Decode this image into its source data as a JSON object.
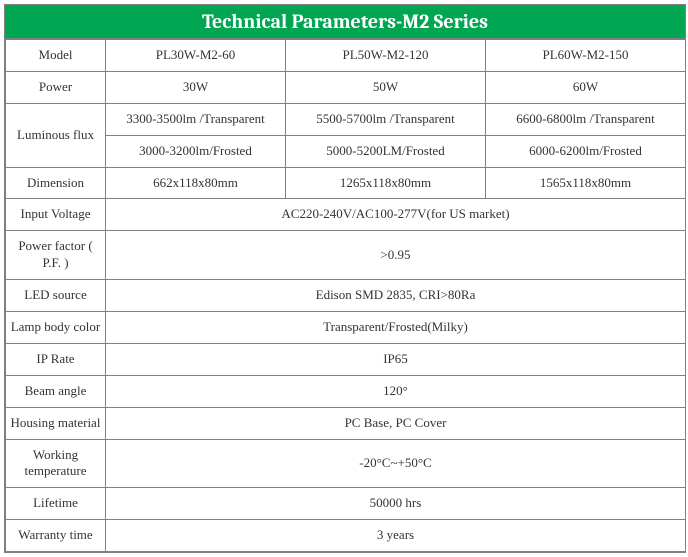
{
  "title": "Technical Parameters-M2 Series",
  "colors": {
    "header_bg": "#00a651",
    "header_text": "#ffffff",
    "border": "#808080",
    "cell_text": "#333333",
    "bg": "#ffffff"
  },
  "labels": {
    "model": "Model",
    "power": "Power",
    "luminous_flux": "Luminous flux",
    "dimension": "Dimension",
    "input_voltage": "Input Voltage",
    "power_factor": "Power factor ( P.F. )",
    "led_source": "LED source",
    "lamp_body_color": "Lamp body color",
    "ip_rate": "IP Rate",
    "beam_angle": "Beam angle",
    "housing_material": "Housing material",
    "working_temperature": "Working temperature",
    "lifetime": "Lifetime",
    "warranty_time": "Warranty time"
  },
  "model": {
    "v1": "PL30W-M2-60",
    "v2": "PL50W-M2-120",
    "v3": "PL60W-M2-150"
  },
  "power": {
    "v1": "30W",
    "v2": "50W",
    "v3": "60W"
  },
  "luminous_flux_transparent": {
    "v1": "3300-3500lm /Transparent",
    "v2": "5500-5700lm /Transparent",
    "v3": "6600-6800lm /Transparent"
  },
  "luminous_flux_frosted": {
    "v1": "3000-3200lm/Frosted",
    "v2": "5000-5200LM/Frosted",
    "v3": "6000-6200lm/Frosted"
  },
  "dimension": {
    "v1": "662x118x80mm",
    "v2": "1265x118x80mm",
    "v3": "1565x118x80mm"
  },
  "input_voltage": "AC220-240V/AC100-277V(for US market)",
  "power_factor": ">0.95",
  "led_source": "Edison SMD 2835,   CRI>80Ra",
  "lamp_body_color": "Transparent/Frosted(Milky)",
  "ip_rate": "IP65",
  "beam_angle": "120°",
  "housing_material": "PC Base, PC Cover",
  "working_temperature": "-20°C~+50°C",
  "lifetime": "50000 hrs",
  "warranty_time": "3 years"
}
